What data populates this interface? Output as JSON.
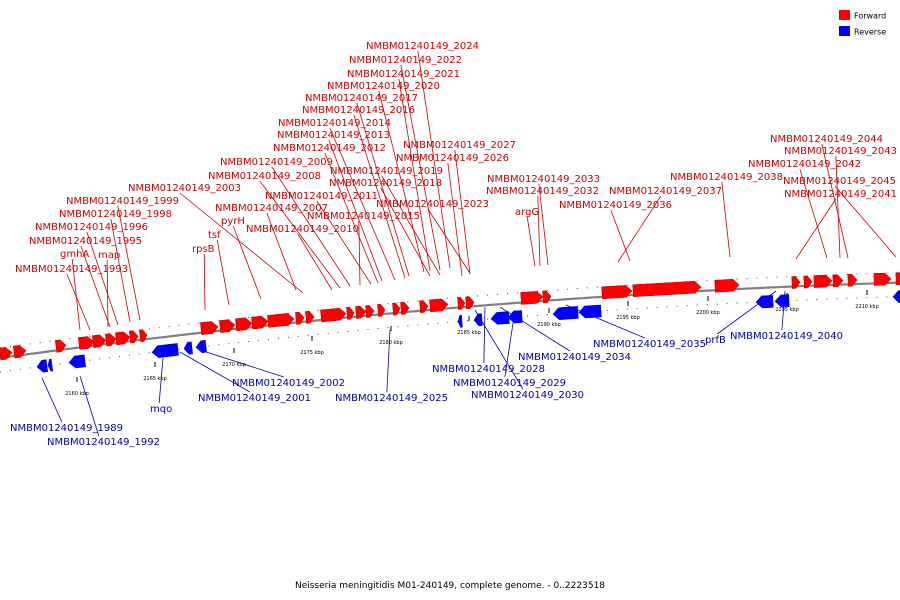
{
  "caption": "Neisseria meningitidis M01-240149, complete genome. - 0..2223518",
  "legend": [
    {
      "name": "Forward",
      "color": "#ff0000"
    },
    {
      "name": "Reverse",
      "color": "#0000ff"
    }
  ],
  "colors": {
    "forward": "#ff0000",
    "reverse": "#0000ff",
    "forward_label": "#cc0000",
    "reverse_label": "#0000aa",
    "backbone": "#808080"
  },
  "scale_ticks": [
    "2160 kbp",
    "2165 kbp",
    "2170 kbp",
    "2175 kbp",
    "2180 kbp",
    "2185 kbp",
    "2190 kbp",
    "2195 kbp",
    "2200 kbp",
    "2205 kbp",
    "2210 kbp"
  ],
  "forward_labels": [
    "NMBM01240149_2024",
    "NMBM01240149_2022",
    "NMBM01240149_2021",
    "NMBM01240149_2020",
    "NMBM01240149_2017",
    "NMBM01240149_2016",
    "NMBM01240149_2014",
    "NMBM01240149_2013",
    "NMBM01240149_2012",
    "NMBM01240149_2027",
    "NMBM01240149_2026",
    "NMBM01240149_2009",
    "NMBM01240149_2019",
    "NMBM01240149_2008",
    "NMBM01240149_2018",
    "NMBM01240149_2033",
    "NMBM01240149_2003",
    "NMBM01240149_2011",
    "NMBM01240149_2032",
    "NMBM01240149_2037",
    "NMBM01240149_1999",
    "NMBM01240149_2007",
    "NMBM01240149_2023",
    "NMBM01240149_2036",
    "NMBM01240149_1998",
    "NMBM01240149_2015",
    "argG",
    "tsf",
    "NMBM01240149_1996",
    "pyrH",
    "NMBM01240149_2010",
    "NMBM01240149_1995",
    "rpsB",
    "gmhA",
    "map",
    "NMBM01240149_1993",
    "NMBM01240149_2038",
    "NMBM01240149_2044",
    "NMBM01240149_2043",
    "NMBM01240149_2042",
    "NMBM01240149_2045",
    "NMBM01240149_2041"
  ],
  "reverse_labels": [
    "NMBM01240149_2035",
    "prfB",
    "NMBM01240149_2040",
    "NMBM01240149_2034",
    "NMBM01240149_2028",
    "NMBM01240149_2029",
    "NMBM01240149_2030",
    "NMBM01240149_2002",
    "NMBM01240149_2025",
    "NMBM01240149_2001",
    "mqo",
    "NMBM01240149_1989",
    "NMBM01240149_1992"
  ]
}
